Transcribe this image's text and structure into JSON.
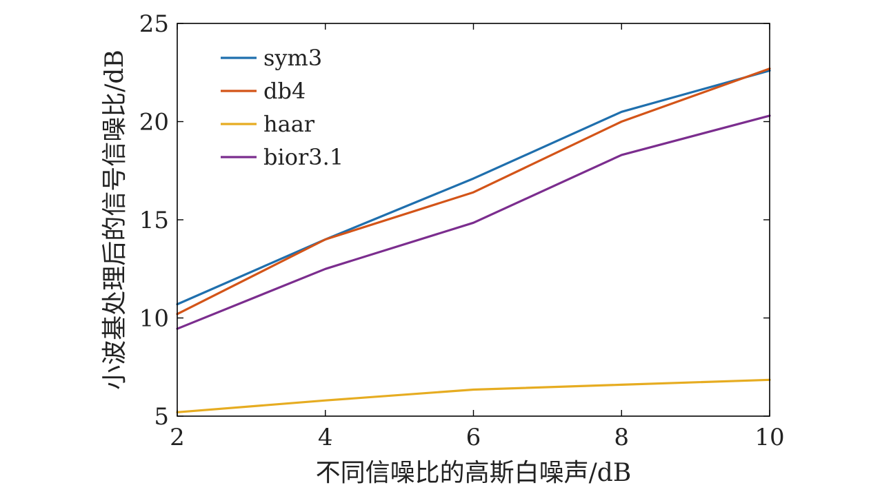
{
  "chart_data": {
    "type": "line",
    "title": "",
    "xlabel": "不同信噪比的高斯白噪声/dB",
    "ylabel": "小波基处理后的信号信噪比/dB",
    "x": [
      2,
      4,
      6,
      8,
      10
    ],
    "xlim": [
      2,
      10
    ],
    "ylim": [
      5,
      25
    ],
    "xticks": [
      2,
      4,
      6,
      8,
      10
    ],
    "yticks": [
      5,
      10,
      15,
      20,
      25
    ],
    "grid": false,
    "legend_position": "top-left",
    "series": [
      {
        "name": "sym3",
        "color": "#1f6fad",
        "values": [
          10.7,
          14.0,
          17.1,
          20.5,
          22.6
        ]
      },
      {
        "name": "db4",
        "color": "#d35418",
        "values": [
          10.2,
          14.0,
          16.4,
          20.0,
          22.7
        ]
      },
      {
        "name": "haar",
        "color": "#e6ac21",
        "values": [
          5.2,
          5.8,
          6.35,
          6.6,
          6.85
        ]
      },
      {
        "name": "bior3.1",
        "color": "#7b2d8e",
        "values": [
          9.45,
          12.5,
          14.85,
          18.3,
          20.3
        ]
      }
    ]
  }
}
